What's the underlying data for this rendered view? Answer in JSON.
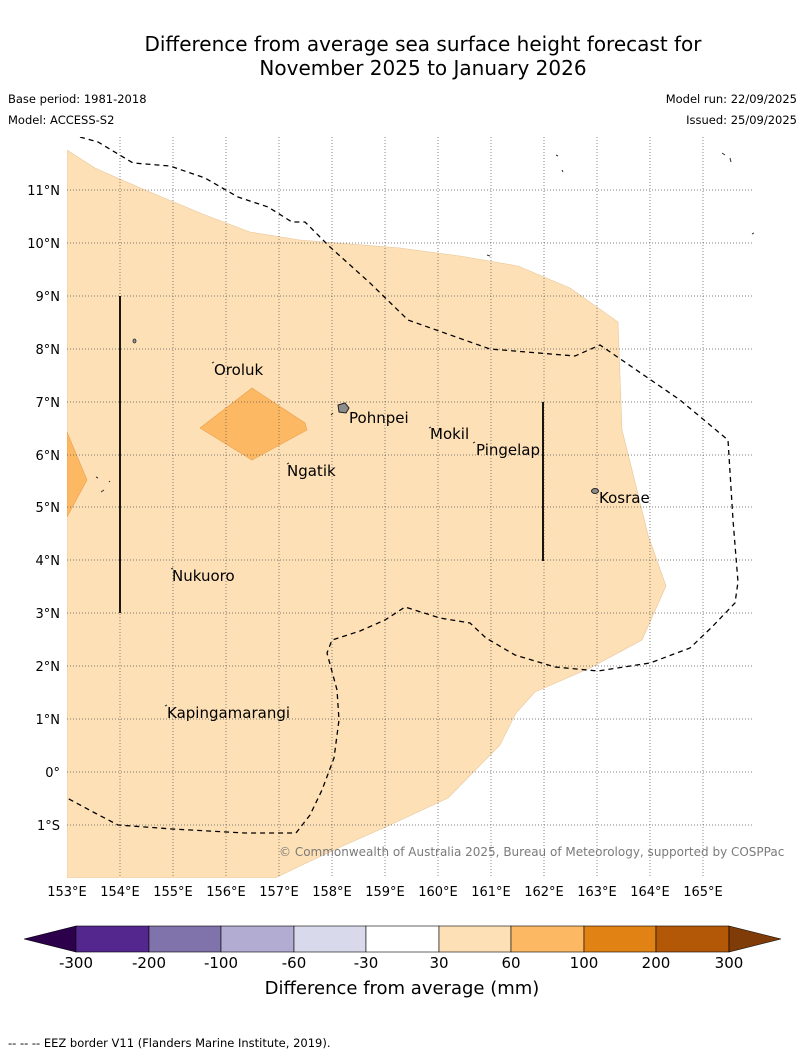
{
  "title": {
    "line1": "Difference from average sea surface height forecast for",
    "line2": "November 2025 to January 2026"
  },
  "meta": {
    "base_period": "Base period: 1981-2018",
    "model": "Model: ACCESS-S2",
    "model_run": "Model run: 22/09/2025",
    "issued": "Issued: 25/09/2025"
  },
  "map": {
    "lon_ticks": [
      "153°E",
      "154°E",
      "155°E",
      "156°E",
      "157°E",
      "158°E",
      "159°E",
      "160°E",
      "161°E",
      "162°E",
      "163°E",
      "164°E",
      "165°E"
    ],
    "lat_ticks": [
      "11°N",
      "10°N",
      "9°N",
      "8°N",
      "7°N",
      "6°N",
      "5°N",
      "4°N",
      "3°N",
      "2°N",
      "1°N",
      "0°",
      "1°S"
    ],
    "places": [
      {
        "name": "Oroluk"
      },
      {
        "name": "Pohnpei"
      },
      {
        "name": "Mokil"
      },
      {
        "name": "Pingelap"
      },
      {
        "name": "Ngatik"
      },
      {
        "name": "Kosrae"
      },
      {
        "name": "Nukuoro"
      },
      {
        "name": "Kapingamarangi"
      }
    ],
    "copyright": "© Commonwealth of Australia 2025, Bureau of Meteorology, supported by COSPPac"
  },
  "colorbar": {
    "title": "Difference from average (mm)",
    "ticks": [
      "-300",
      "-200",
      "-100",
      "-60",
      "-30",
      "30",
      "60",
      "100",
      "200",
      "300"
    ],
    "colors": [
      "#54278f",
      "#8073ac",
      "#b2abd2",
      "#d8daeb",
      "#ffffff",
      "#fee0b6",
      "#fdb863",
      "#e08214",
      "#b35806"
    ],
    "under_color": "#2d004b",
    "over_color": "#7f3b08"
  },
  "footnote": "-- -- -- EEZ border V11 (Flanders Marine Institute, 2019)."
}
